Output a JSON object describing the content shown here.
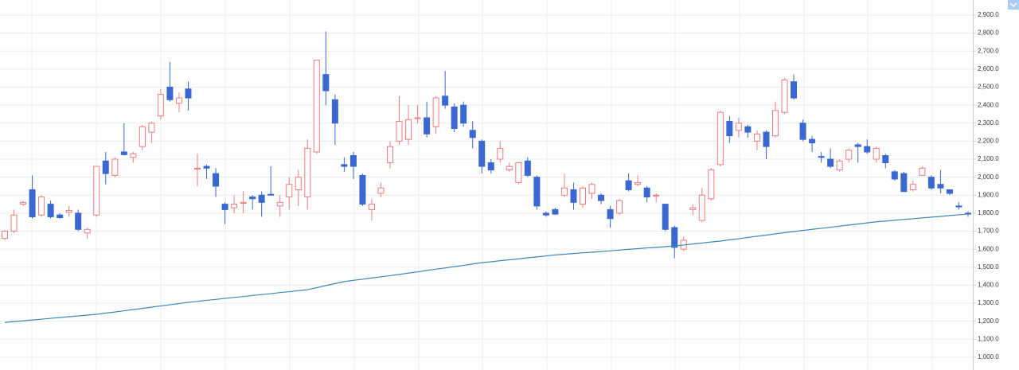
{
  "chart_data": {
    "type": "candlestick",
    "up_color": "#ef7d7d",
    "down_color": "#3a68d0",
    "open": [
      1660,
      1700,
      1850,
      1930,
      1790,
      1850,
      1790,
      1805,
      1800,
      1690,
      1790,
      2090,
      2010,
      2140,
      2110,
      2170,
      2250,
      2340,
      2500,
      2410,
      2490,
      2045,
      2060,
      2020,
      1850,
      1830,
      1855,
      1890,
      1900,
      1905,
      1840,
      1890,
      1930,
      1890,
      2140,
      2570,
      2430,
      2070,
      2120,
      2010,
      1820,
      1910,
      2080,
      2200,
      2210,
      2325,
      2330,
      2280,
      2450,
      2390,
      2400,
      2260,
      2200,
      2080,
      2100,
      2040,
      1970,
      2090,
      2000,
      1800,
      1820,
      1900,
      1930,
      1850,
      1910,
      1900,
      1820,
      1800,
      1980,
      1960,
      1940,
      1900,
      1850,
      1720,
      1600,
      1820,
      1760,
      1880,
      2070,
      2310,
      2260,
      2280,
      2200,
      2250,
      2230,
      2360,
      2530,
      2300,
      2210,
      2115,
      2100,
      2040,
      2100,
      2180,
      2170,
      2100,
      2120,
      2030,
      2020,
      1930,
      2010,
      2000,
      1960,
      1930,
      1840,
      1800
    ],
    "high": [
      1705,
      1820,
      1870,
      2010,
      1900,
      1870,
      1800,
      1840,
      1820,
      1720,
      2060,
      2140,
      2110,
      2300,
      2140,
      2290,
      2310,
      2490,
      2640,
      2470,
      2530,
      2130,
      2070,
      2050,
      1860,
      1900,
      1920,
      1900,
      1920,
      2060,
      1900,
      2000,
      2040,
      2210,
      2650,
      2810,
      2460,
      2110,
      2140,
      2020,
      1880,
      1970,
      2200,
      2450,
      2400,
      2400,
      2420,
      2450,
      2590,
      2410,
      2420,
      2310,
      2210,
      2100,
      2200,
      2080,
      2080,
      2110,
      2010,
      1810,
      1830,
      2020,
      1970,
      1950,
      1970,
      1910,
      1840,
      1880,
      2020,
      2010,
      1950,
      1910,
      1850,
      1730,
      1670,
      1850,
      1940,
      2050,
      2370,
      2340,
      2330,
      2290,
      2260,
      2260,
      2420,
      2550,
      2570,
      2320,
      2230,
      2140,
      2160,
      2100,
      2160,
      2190,
      2210,
      2170,
      2130,
      2040,
      2030,
      1980,
      2060,
      2010,
      2040,
      1930,
      1860,
      1810
    ],
    "low": [
      1650,
      1690,
      1840,
      1770,
      1780,
      1770,
      1770,
      1780,
      1700,
      1660,
      1780,
      1960,
      2000,
      2120,
      2080,
      2150,
      2190,
      2320,
      2420,
      2360,
      2370,
      1950,
      1990,
      1890,
      1740,
      1800,
      1800,
      1820,
      1780,
      1900,
      1780,
      1820,
      1840,
      1820,
      2130,
      2400,
      2180,
      2030,
      1990,
      1840,
      1760,
      1890,
      2050,
      2180,
      2180,
      2300,
      2220,
      2240,
      2380,
      2250,
      2280,
      2160,
      2020,
      2020,
      2080,
      2030,
      1960,
      2000,
      1820,
      1780,
      1790,
      1890,
      1820,
      1830,
      1880,
      1850,
      1720,
      1790,
      1920,
      1950,
      1860,
      1860,
      1700,
      1550,
      1590,
      1790,
      1750,
      1870,
      2060,
      2190,
      2220,
      2220,
      2150,
      2100,
      2220,
      2350,
      2430,
      2200,
      2140,
      2080,
      2050,
      2030,
      2080,
      2080,
      2130,
      2080,
      2050,
      1980,
      1920,
      1920,
      2010,
      1930,
      1910,
      1900,
      1820,
      1780
    ],
    "close": [
      1700,
      1790,
      1860,
      1780,
      1890,
      1780,
      1775,
      1815,
      1710,
      1710,
      2060,
      2020,
      2100,
      2125,
      2130,
      2280,
      2300,
      2460,
      2430,
      2440,
      2440,
      2050,
      2050,
      1950,
      1820,
      1850,
      1860,
      1880,
      1860,
      1900,
      1860,
      1960,
      2000,
      2160,
      2650,
      2480,
      2300,
      2060,
      2060,
      1850,
      1850,
      1940,
      2170,
      2310,
      2320,
      2330,
      2240,
      2440,
      2400,
      2270,
      2300,
      2220,
      2060,
      2040,
      2160,
      2060,
      2080,
      2010,
      1840,
      1790,
      1795,
      1940,
      1860,
      1940,
      1960,
      1870,
      1770,
      1870,
      1930,
      1970,
      1890,
      1900,
      1710,
      1610,
      1650,
      1830,
      1900,
      2040,
      2360,
      2230,
      2300,
      2250,
      2240,
      2170,
      2370,
      2540,
      2440,
      2210,
      2190,
      2110,
      2060,
      2090,
      2150,
      2170,
      2140,
      2160,
      2080,
      1990,
      1920,
      1960,
      2050,
      1940,
      1940,
      1910,
      1835,
      1795
    ],
    "moving_average": {
      "color": "#3f86b8",
      "values": [
        1193,
        1198,
        1202,
        1207,
        1211,
        1216,
        1220,
        1225,
        1229,
        1234,
        1238,
        1245,
        1251,
        1258,
        1265,
        1271,
        1278,
        1285,
        1291,
        1298,
        1305,
        1310,
        1316,
        1321,
        1327,
        1332,
        1337,
        1343,
        1348,
        1353,
        1359,
        1364,
        1370,
        1375,
        1386,
        1398,
        1409,
        1420,
        1427,
        1433,
        1440,
        1447,
        1453,
        1460,
        1467,
        1474,
        1482,
        1489,
        1496,
        1503,
        1510,
        1518,
        1525,
        1530,
        1536,
        1541,
        1546,
        1552,
        1557,
        1563,
        1568,
        1572,
        1576,
        1580,
        1583,
        1587,
        1591,
        1595,
        1599,
        1603,
        1607,
        1610,
        1614,
        1618,
        1623,
        1629,
        1634,
        1640,
        1645,
        1652,
        1658,
        1665,
        1672,
        1678,
        1685,
        1692,
        1698,
        1704,
        1710,
        1716,
        1722,
        1728,
        1734,
        1740,
        1746,
        1752,
        1756,
        1761,
        1765,
        1769,
        1774,
        1778,
        1782,
        1787,
        1791,
        1795
      ]
    },
    "ylim": [
      929,
      2984
    ],
    "yticks": [
      {
        "value": 1000,
        "label": "1,000.0"
      },
      {
        "value": 1100,
        "label": "1,100.0"
      },
      {
        "value": 1200,
        "label": "1,200.0"
      },
      {
        "value": 1300,
        "label": "1,300.0"
      },
      {
        "value": 1400,
        "label": "1,400.0"
      },
      {
        "value": 1500,
        "label": "1,500.0"
      },
      {
        "value": 1600,
        "label": "1,600.0"
      },
      {
        "value": 1700,
        "label": "1,700.0"
      },
      {
        "value": 1800,
        "label": "1,800.0"
      },
      {
        "value": 1900,
        "label": "1,900.0"
      },
      {
        "value": 2000,
        "label": "2,000.0"
      },
      {
        "value": 2100,
        "label": "2,100.0"
      },
      {
        "value": 2200,
        "label": "2,200.0"
      },
      {
        "value": 2300,
        "label": "2,300.0"
      },
      {
        "value": 2400,
        "label": "2,400.0"
      },
      {
        "value": 2500,
        "label": "2,500.0"
      },
      {
        "value": 2600,
        "label": "2,600.0"
      },
      {
        "value": 2700,
        "label": "2,700.0"
      },
      {
        "value": 2800,
        "label": "2,800.0"
      },
      {
        "value": 2900,
        "label": "2,900.0"
      }
    ],
    "grid": true
  }
}
